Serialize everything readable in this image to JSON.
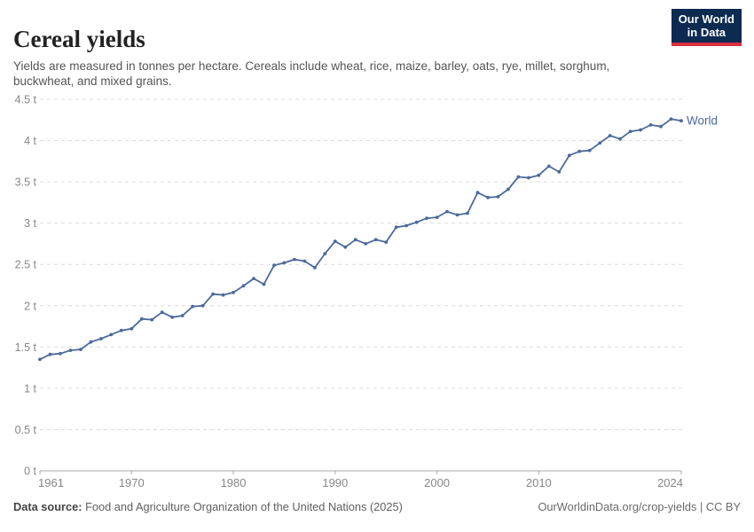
{
  "header": {
    "title": "Cereal yields",
    "subtitle": "Yields are measured in tonnes per hectare. Cereals include wheat, rice, maize, barley, oats, rye, millet, sorghum, buckwheat, and mixed grains.",
    "logo": {
      "line1": "Our World",
      "line2": "in Data"
    }
  },
  "chart_data": {
    "type": "line",
    "title": "Cereal yields",
    "unit": "tonnes per hectare",
    "xlabel": "",
    "ylabel": "",
    "xlim": [
      1961,
      2024
    ],
    "ylim": [
      0,
      4.5
    ],
    "grid": "horizontal-dashed",
    "legend_position": "end-of-line",
    "x_ticks": [
      1961,
      1970,
      1980,
      1990,
      2000,
      2010,
      2024
    ],
    "y_ticks": [
      0,
      0.5,
      1,
      1.5,
      2,
      2.5,
      3,
      3.5,
      4,
      4.5
    ],
    "y_tick_labels": [
      "0 t",
      "0.5 t",
      "1 t",
      "1.5 t",
      "2 t",
      "2.5 t",
      "3 t",
      "3.5 t",
      "4 t",
      "4.5 t"
    ],
    "x": [
      1961,
      1962,
      1963,
      1964,
      1965,
      1966,
      1967,
      1968,
      1969,
      1970,
      1971,
      1972,
      1973,
      1974,
      1975,
      1976,
      1977,
      1978,
      1979,
      1980,
      1981,
      1982,
      1983,
      1984,
      1985,
      1986,
      1987,
      1988,
      1989,
      1990,
      1991,
      1992,
      1993,
      1994,
      1995,
      1996,
      1997,
      1998,
      1999,
      2000,
      2001,
      2002,
      2003,
      2004,
      2005,
      2006,
      2007,
      2008,
      2009,
      2010,
      2011,
      2012,
      2013,
      2014,
      2015,
      2016,
      2017,
      2018,
      2019,
      2020,
      2021,
      2022,
      2023,
      2024
    ],
    "series": [
      {
        "name": "World",
        "color": "#4c6a9c",
        "values": [
          1.35,
          1.41,
          1.42,
          1.46,
          1.47,
          1.56,
          1.6,
          1.65,
          1.7,
          1.72,
          1.84,
          1.83,
          1.92,
          1.86,
          1.88,
          1.99,
          2.0,
          2.14,
          2.13,
          2.16,
          2.24,
          2.33,
          2.26,
          2.49,
          2.52,
          2.56,
          2.54,
          2.46,
          2.63,
          2.78,
          2.71,
          2.8,
          2.75,
          2.8,
          2.77,
          2.95,
          2.97,
          3.01,
          3.06,
          3.07,
          3.14,
          3.1,
          3.12,
          3.37,
          3.31,
          3.32,
          3.41,
          3.56,
          3.55,
          3.58,
          3.69,
          3.62,
          3.82,
          3.87,
          3.88,
          3.97,
          4.06,
          4.02,
          4.11,
          4.13,
          4.19,
          4.17,
          4.26,
          4.24
        ]
      }
    ]
  },
  "footer": {
    "source_label": "Data source:",
    "source_text": " Food and Agriculture Organization of the United Nations (2025)",
    "link_text": "OurWorldinData.org/crop-yields | CC BY"
  },
  "colors": {
    "series_blue": "#4c6a9c",
    "grid": "#dcdcdc",
    "axis": "#a8a8a8",
    "tick_label": "#878787",
    "logo_bg": "#0d2a50",
    "logo_accent": "#dc2e41"
  }
}
